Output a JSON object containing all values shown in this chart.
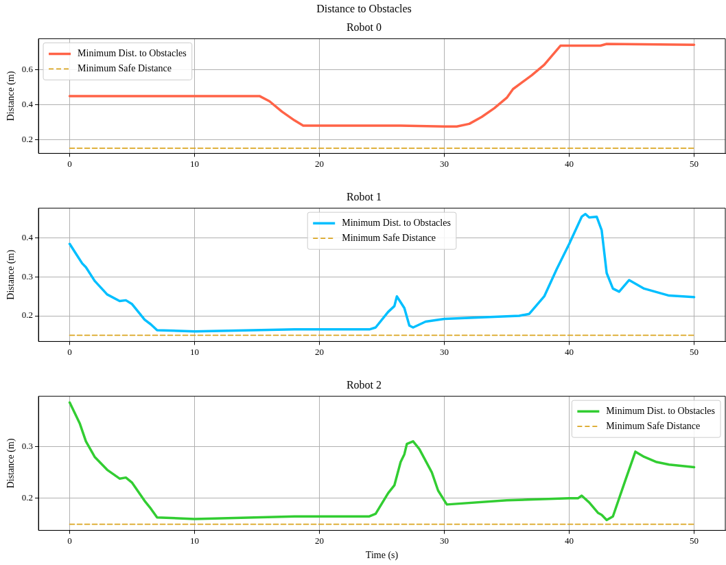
{
  "chart_data": [
    {
      "type": "line",
      "title": "Distance to Obstacles",
      "subtitle": "Robot 0",
      "ylabel": "Distance (m)",
      "xlim": [
        -2.5,
        52.5
      ],
      "xticks": [
        0,
        10,
        20,
        30,
        40,
        50
      ],
      "ylim": [
        0.12,
        0.78
      ],
      "yticks": [
        0.2,
        0.4,
        0.6
      ],
      "grid": true,
      "legend": "top left",
      "marker": "none",
      "series": [
        {
          "name": "Minimum Dist. to Obstacles",
          "color": "#ff6347",
          "x": [
            0,
            15.2,
            16,
            17,
            18,
            18.7,
            26.5,
            30,
            31,
            32,
            33,
            34,
            35,
            35.5,
            37,
            38,
            39.3,
            42.5,
            43,
            50
          ],
          "values": [
            0.45,
            0.45,
            0.42,
            0.36,
            0.31,
            0.28,
            0.28,
            0.275,
            0.275,
            0.29,
            0.33,
            0.38,
            0.44,
            0.49,
            0.57,
            0.63,
            0.74,
            0.74,
            0.75,
            0.745
          ]
        },
        {
          "name": "Minimum Safe Distance",
          "color": "#daa520",
          "line_style": "dashed",
          "x": [
            0,
            50
          ],
          "values": [
            0.15,
            0.15
          ]
        }
      ]
    },
    {
      "type": "line",
      "title": "Robot 1",
      "ylabel": "Distance (m)",
      "xlim": [
        -2.5,
        52.5
      ],
      "xticks": [
        0,
        10,
        20,
        30,
        40,
        50
      ],
      "ylim": [
        0.134,
        0.477
      ],
      "yticks": [
        0.2,
        0.3,
        0.4
      ],
      "grid": true,
      "legend": "top",
      "marker": "none",
      "series": [
        {
          "name": "Minimum Dist. to Obstacles",
          "color": "#00bfff",
          "x": [
            0,
            0.5,
            1,
            1.3,
            2,
            3,
            4,
            4.5,
            5,
            6,
            6.5,
            7,
            10,
            18,
            24,
            24.5,
            25.5,
            26,
            26.2,
            26.5,
            26.8,
            27.2,
            27.5,
            28.5,
            30,
            36,
            36.8,
            38,
            39,
            40,
            41,
            41.3,
            41.6,
            42.2,
            42.6,
            43,
            43.5,
            44,
            44.8,
            46,
            48,
            50
          ],
          "values": [
            0.385,
            0.36,
            0.335,
            0.325,
            0.29,
            0.255,
            0.238,
            0.24,
            0.23,
            0.19,
            0.178,
            0.163,
            0.16,
            0.165,
            0.165,
            0.17,
            0.21,
            0.225,
            0.25,
            0.235,
            0.22,
            0.175,
            0.17,
            0.185,
            0.192,
            0.2,
            0.205,
            0.25,
            0.32,
            0.385,
            0.455,
            0.462,
            0.453,
            0.455,
            0.42,
            0.31,
            0.27,
            0.262,
            0.292,
            0.27,
            0.252,
            0.248
          ]
        },
        {
          "name": "Minimum Safe Distance",
          "color": "#daa520",
          "line_style": "dashed",
          "x": [
            0,
            50
          ],
          "values": [
            0.15,
            0.15
          ]
        }
      ]
    },
    {
      "type": "line",
      "title": "Robot 2",
      "xlabel": "Time (s)",
      "ylabel": "Distance (m)",
      "xlim": [
        -2.5,
        52.5
      ],
      "xticks": [
        0,
        10,
        20,
        30,
        40,
        50
      ],
      "ylim": [
        0.138,
        0.397
      ],
      "yticks": [
        0.2,
        0.3
      ],
      "grid": true,
      "legend": "top right",
      "marker": "none",
      "series": [
        {
          "name": "Minimum Dist. to Obstacles",
          "color": "#32cd32",
          "x": [
            0,
            0.8,
            1.3,
            2,
            3,
            4,
            4.5,
            5,
            6,
            6.5,
            7,
            10,
            18,
            24,
            24.5,
            25.5,
            26,
            26.5,
            26.8,
            27,
            27.5,
            28,
            29,
            29.5,
            30.2,
            35,
            40,
            40.7,
            41,
            41.6,
            42.3,
            42.6,
            43,
            43.5,
            44.5,
            45.3,
            46,
            47,
            48,
            50
          ],
          "values": [
            0.385,
            0.345,
            0.31,
            0.28,
            0.255,
            0.238,
            0.24,
            0.23,
            0.195,
            0.18,
            0.163,
            0.16,
            0.165,
            0.165,
            0.17,
            0.21,
            0.225,
            0.27,
            0.285,
            0.305,
            0.31,
            0.295,
            0.25,
            0.215,
            0.188,
            0.196,
            0.2,
            0.2,
            0.205,
            0.192,
            0.172,
            0.168,
            0.158,
            0.165,
            0.235,
            0.29,
            0.28,
            0.27,
            0.265,
            0.26
          ]
        },
        {
          "name": "Minimum Safe Distance",
          "color": "#daa520",
          "line_style": "dashed",
          "x": [
            0,
            50
          ],
          "values": [
            0.15,
            0.15
          ]
        }
      ]
    }
  ]
}
